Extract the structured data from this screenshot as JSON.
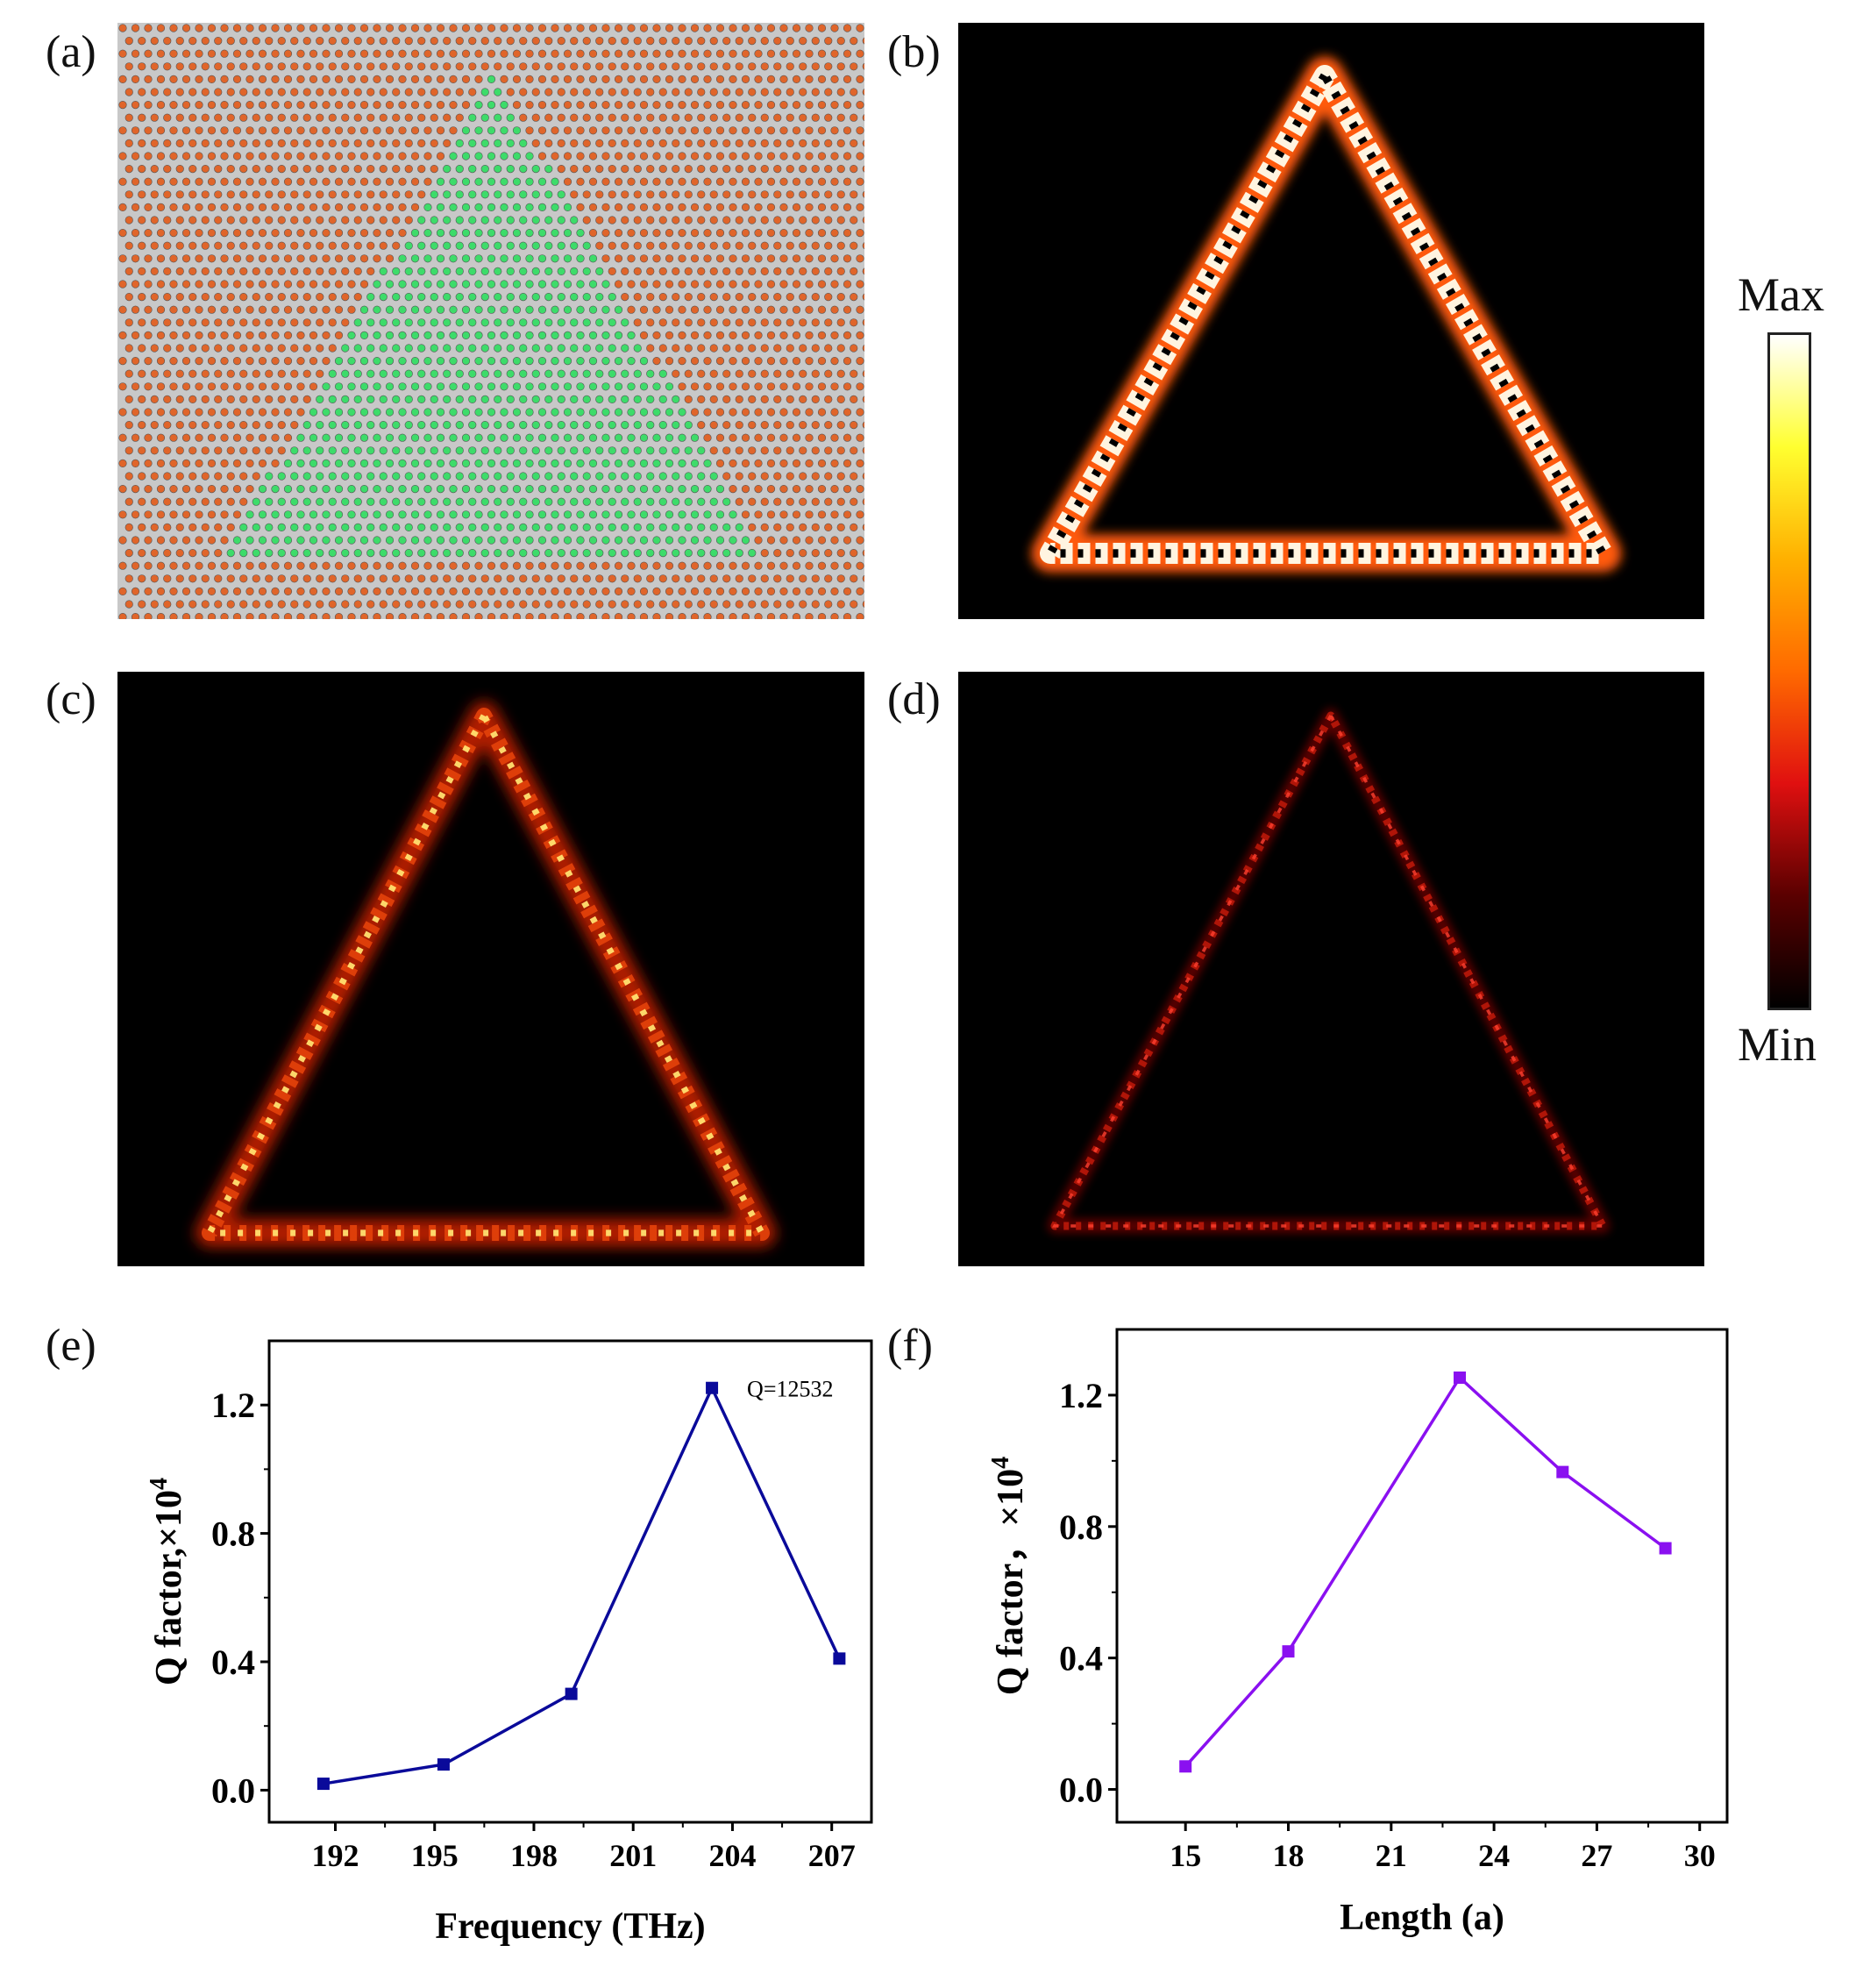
{
  "panel_labels": [
    "(a)",
    "(b)",
    "(c)",
    "(d)",
    "(e)",
    "(f)"
  ],
  "colorbar": {
    "max_label": "Max",
    "min_label": "Min",
    "colors": [
      "#000000",
      "#5a0000",
      "#e01010",
      "#ff6a00",
      "#ffb000",
      "#ffff30",
      "#ffffff"
    ]
  },
  "structure_colors": {
    "background": "#c8c8c8",
    "outer_rods": "#e0652a",
    "inner_rods": "#3ddc6a"
  },
  "chart_data": [
    {
      "type": "line",
      "panel": "(e)",
      "xlabel": "Frequency (THz)",
      "ylabel": "Q factor,×10",
      "ylabel_sup": "4",
      "x": [
        191.64,
        195.27,
        199.13,
        203.38,
        207.23
      ],
      "values": [
        0.02,
        0.08,
        0.3,
        1.2532,
        0.41
      ],
      "xlim": [
        190,
        208.2
      ],
      "ylim": [
        -0.1,
        1.4
      ],
      "xticks": [
        192,
        195,
        198,
        201,
        204,
        207
      ],
      "xtick_labels": [
        "192",
        "195",
        "198",
        "201",
        "204",
        "207"
      ],
      "yticks": [
        0.0,
        0.4,
        0.8,
        1.2
      ],
      "ytick_labels": [
        "0.0",
        "0.4",
        "0.8",
        "1.2"
      ],
      "annotation": "Q=12532",
      "color": "#0a0a9a",
      "grid": false
    },
    {
      "type": "line",
      "panel": "(f)",
      "xlabel": "Length (a)",
      "ylabel": "Q factor，×10",
      "ylabel_sup": "4",
      "x": [
        15,
        18,
        23,
        26,
        29
      ],
      "values": [
        0.07,
        0.42,
        1.2532,
        0.966,
        0.734
      ],
      "xlim": [
        13,
        30.8
      ],
      "ylim": [
        -0.1,
        1.4
      ],
      "xticks": [
        15,
        18,
        21,
        24,
        27,
        30
      ],
      "xtick_labels": [
        "15",
        "18",
        "21",
        "24",
        "27",
        "30"
      ],
      "yticks": [
        0.0,
        0.4,
        0.8,
        1.2
      ],
      "ytick_labels": [
        "0.0",
        "0.4",
        "0.8",
        "1.2"
      ],
      "color": "#8a10f0",
      "grid": false
    }
  ]
}
